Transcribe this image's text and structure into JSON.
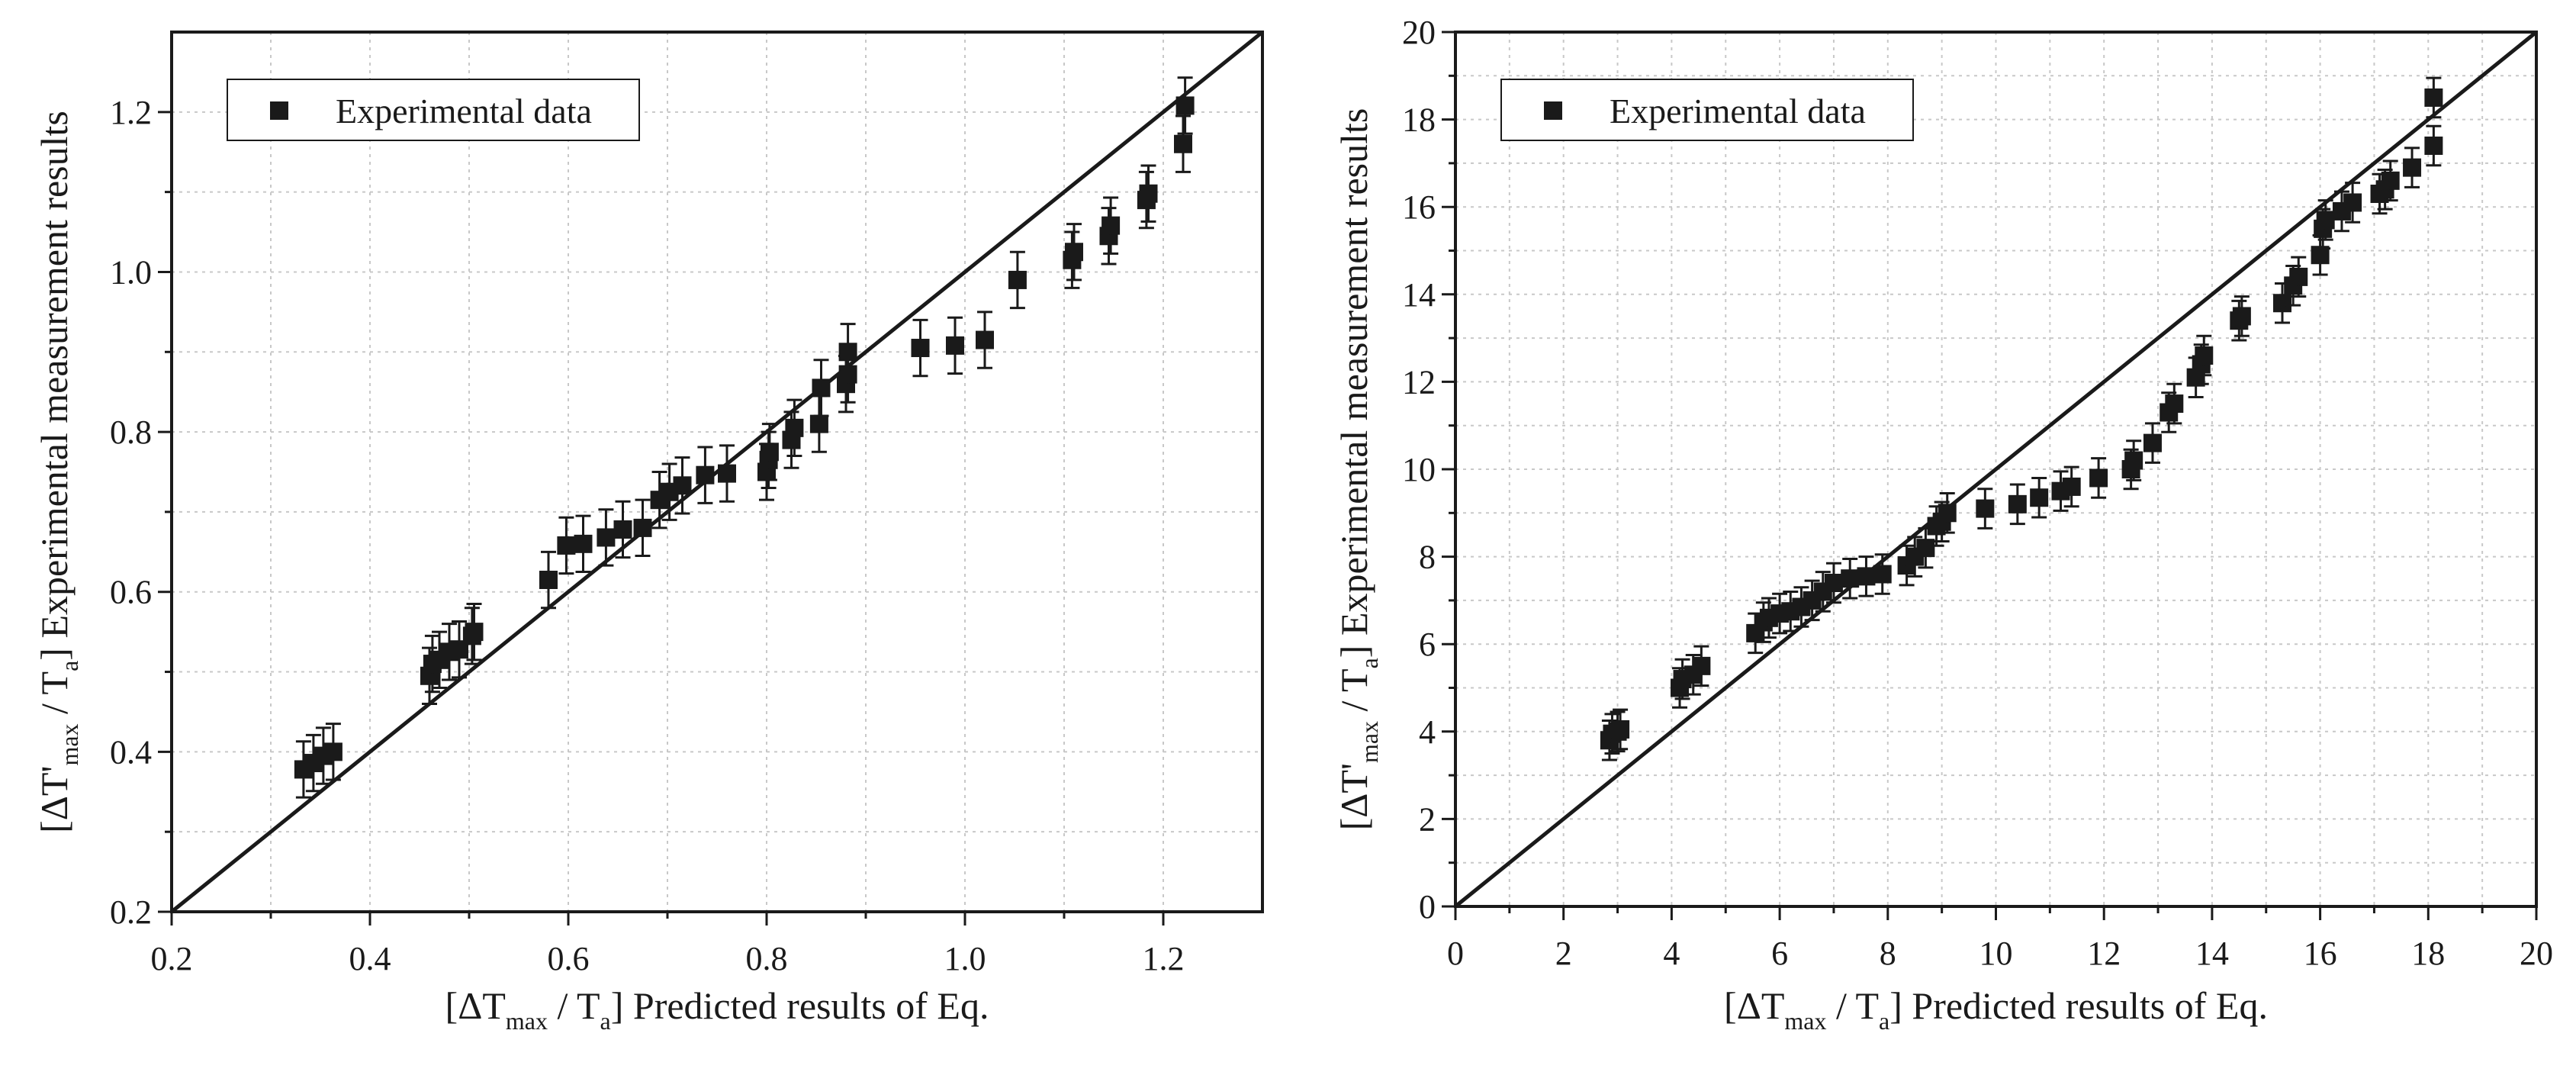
{
  "colors": {
    "ink": "#1a1a1a",
    "grid": "#c8c8c8",
    "background": "#ffffff"
  },
  "chart_data": [
    {
      "type": "scatter",
      "panel": "left",
      "xlim": [
        0.2,
        1.3
      ],
      "ylim": [
        0.2,
        1.3
      ],
      "xticks": [
        0.2,
        0.4,
        0.6,
        0.8,
        1.0,
        1.2
      ],
      "xtick_labels": [
        "0.2",
        "0.4",
        "0.6",
        "0.8",
        "1.0",
        "1.2"
      ],
      "yticks": [
        0.2,
        0.4,
        0.6,
        0.8,
        1.0,
        1.2
      ],
      "ytick_labels": [
        "0.2",
        "0.4",
        "0.6",
        "0.8",
        "1.0",
        "1.2"
      ],
      "grid": true,
      "diagonal": [
        [
          0.2,
          0.2
        ],
        [
          1.3,
          1.3
        ]
      ],
      "legend": {
        "label": "Experimental data",
        "placement": "top-left"
      },
      "xlabel": {
        "pre": "[ΔT",
        "sub1": "max",
        "mid": " / T",
        "sub2": "a",
        "post": "] Predicted results of Eq."
      },
      "ylabel": {
        "pre": "[ΔT'",
        "sub1": "max",
        "mid": " / T",
        "sub2": "a",
        "post": "] Experimental measurement results"
      },
      "error": 0.035,
      "points": [
        [
          0.333,
          0.378
        ],
        [
          0.343,
          0.386
        ],
        [
          0.353,
          0.395
        ],
        [
          0.363,
          0.4
        ],
        [
          0.46,
          0.495
        ],
        [
          0.463,
          0.51
        ],
        [
          0.47,
          0.515
        ],
        [
          0.48,
          0.525
        ],
        [
          0.49,
          0.528
        ],
        [
          0.503,
          0.545
        ],
        [
          0.505,
          0.55
        ],
        [
          0.58,
          0.615
        ],
        [
          0.598,
          0.658
        ],
        [
          0.615,
          0.66
        ],
        [
          0.638,
          0.668
        ],
        [
          0.655,
          0.678
        ],
        [
          0.675,
          0.68
        ],
        [
          0.692,
          0.715
        ],
        [
          0.702,
          0.725
        ],
        [
          0.715,
          0.733
        ],
        [
          0.738,
          0.746
        ],
        [
          0.76,
          0.748
        ],
        [
          0.8,
          0.75
        ],
        [
          0.802,
          0.765
        ],
        [
          0.803,
          0.775
        ],
        [
          0.825,
          0.79
        ],
        [
          0.828,
          0.805
        ],
        [
          0.853,
          0.81
        ],
        [
          0.855,
          0.855
        ],
        [
          0.88,
          0.86
        ],
        [
          0.882,
          0.872
        ],
        [
          0.882,
          0.9
        ],
        [
          0.955,
          0.905
        ],
        [
          0.99,
          0.908
        ],
        [
          1.02,
          0.915
        ],
        [
          1.053,
          0.99
        ],
        [
          1.108,
          1.015
        ],
        [
          1.11,
          1.025
        ],
        [
          1.145,
          1.045
        ],
        [
          1.147,
          1.058
        ],
        [
          1.183,
          1.09
        ],
        [
          1.185,
          1.098
        ],
        [
          1.22,
          1.16
        ],
        [
          1.222,
          1.208
        ]
      ]
    },
    {
      "type": "scatter",
      "panel": "right",
      "xlim": [
        0,
        20
      ],
      "ylim": [
        0,
        20
      ],
      "xticks": [
        0,
        2,
        4,
        6,
        8,
        10,
        12,
        14,
        16,
        18,
        20
      ],
      "xtick_labels": [
        "0",
        "2",
        "4",
        "6",
        "8",
        "10",
        "12",
        "14",
        "16",
        "18",
        "20"
      ],
      "yticks": [
        0,
        2,
        4,
        6,
        8,
        10,
        12,
        14,
        16,
        18,
        20
      ],
      "ytick_labels": [
        "0",
        "2",
        "4",
        "6",
        "8",
        "10",
        "12",
        "14",
        "16",
        "18",
        "20"
      ],
      "grid": true,
      "diagonal": [
        [
          0,
          0
        ],
        [
          20,
          20
        ]
      ],
      "legend": {
        "label": "Experimental data",
        "placement": "top-left"
      },
      "xlabel": {
        "pre": "[ΔT",
        "sub1": "max",
        "mid": " / T",
        "sub2": "a",
        "post": "] Predicted results of Eq."
      },
      "ylabel": {
        "pre": "[ΔT'",
        "sub1": "max",
        "mid": " / T",
        "sub2": "a",
        "post": "] Experimental measurement results"
      },
      "error": 0.45,
      "points": [
        [
          2.85,
          3.8
        ],
        [
          2.9,
          3.95
        ],
        [
          3.0,
          4.0
        ],
        [
          3.05,
          4.05
        ],
        [
          4.15,
          5.0
        ],
        [
          4.2,
          5.2
        ],
        [
          4.4,
          5.3
        ],
        [
          4.55,
          5.5
        ],
        [
          5.55,
          6.25
        ],
        [
          5.7,
          6.5
        ],
        [
          5.8,
          6.6
        ],
        [
          6.0,
          6.7
        ],
        [
          6.2,
          6.75
        ],
        [
          6.4,
          6.85
        ],
        [
          6.6,
          7.0
        ],
        [
          6.8,
          7.2
        ],
        [
          7.0,
          7.4
        ],
        [
          7.3,
          7.5
        ],
        [
          7.6,
          7.55
        ],
        [
          7.9,
          7.6
        ],
        [
          8.35,
          7.8
        ],
        [
          8.5,
          8.0
        ],
        [
          8.7,
          8.2
        ],
        [
          8.9,
          8.7
        ],
        [
          9.0,
          8.8
        ],
        [
          9.1,
          9.0
        ],
        [
          9.8,
          9.1
        ],
        [
          10.4,
          9.2
        ],
        [
          10.8,
          9.35
        ],
        [
          11.2,
          9.5
        ],
        [
          11.4,
          9.6
        ],
        [
          11.9,
          9.8
        ],
        [
          12.5,
          10.0
        ],
        [
          12.55,
          10.2
        ],
        [
          12.9,
          10.6
        ],
        [
          13.2,
          11.3
        ],
        [
          13.3,
          11.5
        ],
        [
          13.7,
          12.1
        ],
        [
          13.8,
          12.4
        ],
        [
          13.85,
          12.6
        ],
        [
          14.5,
          13.4
        ],
        [
          14.55,
          13.5
        ],
        [
          15.3,
          13.8
        ],
        [
          15.5,
          14.2
        ],
        [
          15.6,
          14.4
        ],
        [
          16.0,
          14.9
        ],
        [
          16.05,
          15.5
        ],
        [
          16.1,
          15.7
        ],
        [
          16.4,
          15.9
        ],
        [
          16.6,
          16.1
        ],
        [
          17.1,
          16.3
        ],
        [
          17.2,
          16.4
        ],
        [
          17.3,
          16.6
        ],
        [
          17.7,
          16.9
        ],
        [
          18.1,
          17.4
        ],
        [
          18.1,
          18.5
        ]
      ]
    }
  ]
}
